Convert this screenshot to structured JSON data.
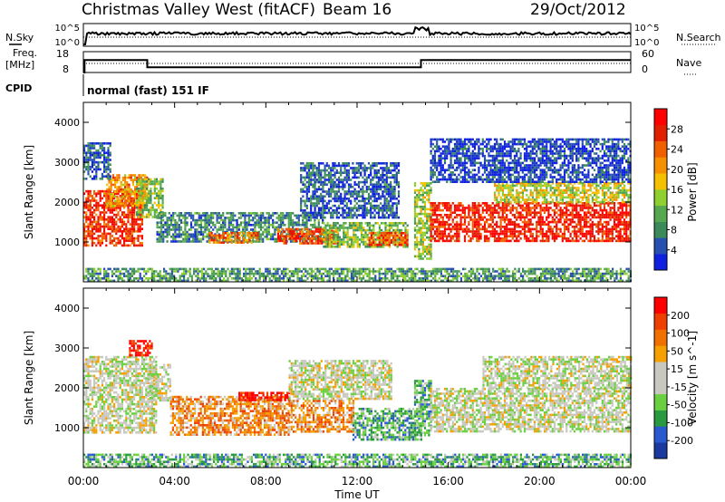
{
  "header": {
    "title": "Christmas Valley West (fitACF)",
    "beam": "Beam 16",
    "date": "29/Oct/2012"
  },
  "left_labels": {
    "nsky": "N.Sky",
    "freq_line1": "Freq.",
    "freq_line2": "[MHz]",
    "cpid": "CPID"
  },
  "right_labels": {
    "nsearch": "N.Search",
    "nave": "Nave"
  },
  "cpid_text": "normal (fast) 151 IF",
  "noise_axis": {
    "left_top": "10^5",
    "left_bottom": "10^0",
    "right_top": "10^5",
    "right_bottom": "10^0"
  },
  "freq_axis": {
    "left_top": "18",
    "left_bottom": "8",
    "right_top": "60",
    "right_bottom": "0"
  },
  "power_colorbar": {
    "label": "Power [dB]",
    "ticks": [
      "4",
      "8",
      "12",
      "16",
      "20",
      "24",
      "28"
    ],
    "colors": [
      "#1020e0",
      "#2850b0",
      "#3a8a5a",
      "#55a850",
      "#8fd030",
      "#f5c000",
      "#f59000",
      "#f06000",
      "#e02000",
      "#ff0000"
    ]
  },
  "velocity_colorbar": {
    "label": "Velocity [m s^-1]",
    "ticks": [
      "200",
      "100",
      "50",
      "15",
      "-15",
      "-50",
      "-100",
      "-200"
    ],
    "colors": [
      "#1a3aa0",
      "#2a5ad0",
      "#2a9a40",
      "#6ad040",
      "#c8c8c0",
      "#c8c8c0",
      "#f5a000",
      "#f07000",
      "#f04000",
      "#ff0000"
    ]
  },
  "chart_data": [
    {
      "type": "heatmap",
      "name": "power",
      "ylabel": "Slant Range [km]",
      "ylim": [
        0,
        4500
      ],
      "yticks": [
        "1000",
        "2000",
        "3000",
        "4000"
      ],
      "xlim": [
        0,
        24
      ],
      "xticks": [
        "00:00",
        "04:00",
        "08:00",
        "12:00",
        "16:00",
        "20:00",
        "00:00"
      ],
      "regions": [
        {
          "t0": 0.0,
          "t1": 2.6,
          "r0": 900,
          "r1": 2300,
          "level": 0.85
        },
        {
          "t0": 1.0,
          "t1": 2.8,
          "r0": 1900,
          "r1": 2700,
          "level": 0.65
        },
        {
          "t0": 0.0,
          "t1": 1.2,
          "r0": 2600,
          "r1": 3500,
          "level": 0.15
        },
        {
          "t0": 2.3,
          "t1": 3.5,
          "r0": 1600,
          "r1": 2600,
          "level": 0.4
        },
        {
          "t0": 3.2,
          "t1": 10.5,
          "r0": 1000,
          "r1": 1750,
          "level": 0.25
        },
        {
          "t0": 5.5,
          "t1": 7.6,
          "r0": 1000,
          "r1": 1250,
          "level": 0.7
        },
        {
          "t0": 8.5,
          "t1": 11.2,
          "r0": 950,
          "r1": 1350,
          "level": 0.8
        },
        {
          "t0": 10.5,
          "t1": 14.2,
          "r0": 900,
          "r1": 1500,
          "level": 0.4
        },
        {
          "t0": 12.5,
          "t1": 14.2,
          "r0": 900,
          "r1": 1250,
          "level": 0.8
        },
        {
          "t0": 14.5,
          "t1": 15.2,
          "r0": 600,
          "r1": 2500,
          "level": 0.45
        },
        {
          "t0": 15.2,
          "t1": 24.0,
          "r0": 1000,
          "r1": 2000,
          "level": 0.88
        },
        {
          "t0": 18.0,
          "t1": 24.0,
          "r0": 2000,
          "r1": 2500,
          "level": 0.5
        },
        {
          "t0": 15.2,
          "t1": 24.0,
          "r0": 2500,
          "r1": 3600,
          "level": 0.1
        },
        {
          "t0": 9.5,
          "t1": 13.8,
          "r0": 1600,
          "r1": 3000,
          "level": 0.15
        },
        {
          "t0": 0.0,
          "t1": 24.0,
          "r0": 0,
          "r1": 350,
          "level": 0.3
        }
      ]
    },
    {
      "type": "heatmap",
      "name": "velocity",
      "ylabel": "Slant Range [km]",
      "ylim": [
        0,
        4500
      ],
      "yticks": [
        "1000",
        "2000",
        "3000",
        "4000"
      ],
      "xlim": [
        0,
        24
      ],
      "xticks": [
        "00:00",
        "04:00",
        "08:00",
        "12:00",
        "16:00",
        "20:00",
        "00:00"
      ],
      "xlabel": "Time UT",
      "regions": [
        {
          "t0": 0.0,
          "t1": 3.2,
          "r0": 900,
          "r1": 2800,
          "level": 0.48
        },
        {
          "t0": 2.0,
          "t1": 3.0,
          "r0": 2800,
          "r1": 3200,
          "level": 0.95
        },
        {
          "t0": 2.8,
          "t1": 3.8,
          "r0": 1700,
          "r1": 2600,
          "level": 0.48
        },
        {
          "t0": 3.8,
          "t1": 9.0,
          "r0": 800,
          "r1": 1800,
          "level": 0.7
        },
        {
          "t0": 6.8,
          "t1": 9.0,
          "r0": 1700,
          "r1": 1900,
          "level": 0.95
        },
        {
          "t0": 9.0,
          "t1": 11.8,
          "r0": 900,
          "r1": 1700,
          "level": 0.7
        },
        {
          "t0": 11.8,
          "t1": 14.8,
          "r0": 700,
          "r1": 1500,
          "level": 0.3
        },
        {
          "t0": 14.5,
          "t1": 15.2,
          "r0": 800,
          "r1": 2200,
          "level": 0.3
        },
        {
          "t0": 15.2,
          "t1": 24.0,
          "r0": 900,
          "r1": 2000,
          "level": 0.48
        },
        {
          "t0": 17.5,
          "t1": 24.0,
          "r0": 2000,
          "r1": 2800,
          "level": 0.48
        },
        {
          "t0": 9.0,
          "t1": 13.5,
          "r0": 1700,
          "r1": 2700,
          "level": 0.48
        },
        {
          "t0": 0.0,
          "t1": 24.0,
          "r0": 0,
          "r1": 350,
          "level": 0.3
        }
      ]
    }
  ],
  "freq_series": {
    "x": [
      0,
      0.05,
      0.05,
      2.8,
      2.8,
      14.8,
      14.8,
      24
    ],
    "y": [
      8,
      8,
      14,
      14,
      10.5,
      10.5,
      14,
      14
    ]
  }
}
